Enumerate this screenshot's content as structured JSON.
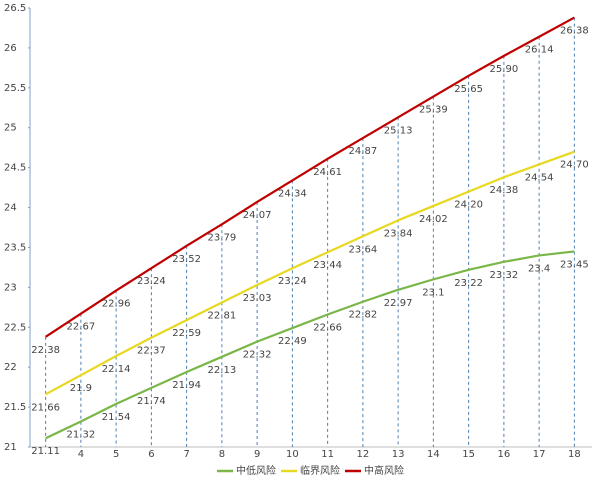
{
  "chart_data": {
    "type": "line",
    "categories": [
      null,
      "4",
      "5",
      "6",
      "7",
      "8",
      "9",
      "10",
      "11",
      "12",
      "13",
      "14",
      "15",
      "16",
      "17",
      "18"
    ],
    "ylim": [
      21,
      26.5
    ],
    "yticks": [
      21,
      21.5,
      22,
      22.5,
      23,
      23.5,
      24,
      24.5,
      25,
      25.5,
      26,
      26.5
    ],
    "legend": "bottom",
    "drop_lines": true,
    "series": [
      {
        "name": "中低风险",
        "color": "#7ab648",
        "values": [
          21.11,
          21.32,
          21.54,
          21.74,
          21.94,
          22.13,
          22.32,
          22.49,
          22.66,
          22.82,
          22.97,
          23.1,
          23.22,
          23.32,
          23.4,
          23.45
        ]
      },
      {
        "name": "临界风险",
        "color": "#e8d820",
        "values": [
          21.66,
          21.9,
          22.14,
          22.37,
          22.59,
          22.81,
          23.03,
          23.24,
          23.44,
          23.64,
          23.84,
          24.02,
          24.2,
          24.38,
          24.54,
          24.7
        ],
        "value_labels": [
          "21.66",
          "21.9",
          "22.14",
          "22.37",
          "22.59",
          "22.81",
          "23.03",
          "23.24",
          "23.44",
          "23.64",
          "23.84",
          "24.02",
          "24.20",
          "24.38",
          "24.54",
          "24.70"
        ]
      },
      {
        "name": "中高风险",
        "color": "#c00000",
        "values": [
          22.38,
          22.67,
          22.96,
          23.24,
          23.52,
          23.79,
          24.07,
          24.34,
          24.61,
          24.87,
          25.13,
          25.39,
          25.65,
          25.9,
          26.14,
          26.38
        ],
        "value_labels": [
          "22.38",
          "22.67",
          "22.96",
          "23.24",
          "23.52",
          "23.79",
          "24.07",
          "24.34",
          "24.61",
          "24.87",
          "25.13",
          "25.39",
          "25.65",
          "25.90",
          "26.14",
          "26.38"
        ]
      }
    ]
  }
}
